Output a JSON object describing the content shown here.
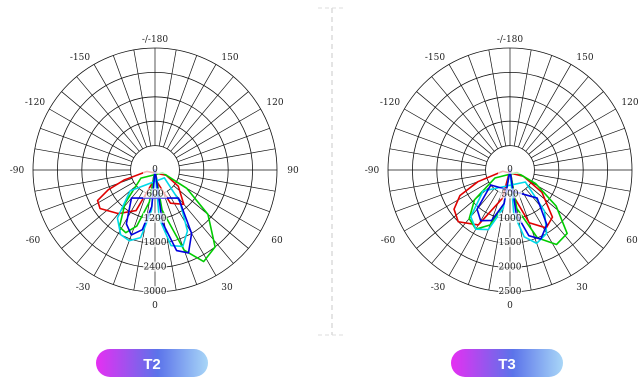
{
  "chart_data": [
    {
      "type": "polar",
      "badge": "T2",
      "angle_labels": [
        "-/-180",
        "-150",
        "150",
        "-120",
        "120",
        "-90",
        "90",
        "-60",
        "60",
        "-30",
        "30",
        "0"
      ],
      "radial_labels": [
        "0",
        "600",
        "1200",
        "1800",
        "2400",
        "3000"
      ],
      "rmax": 3000,
      "series": [
        {
          "color": "#e00000",
          "points": [
            [
              0,
              0
            ],
            [
              -10,
              300
            ],
            [
              -25,
              1100
            ],
            [
              -40,
              1400
            ],
            [
              -55,
              1650
            ],
            [
              -62,
              1600
            ],
            [
              -67,
              1250
            ],
            [
              -72,
              800
            ],
            [
              -80,
              200
            ],
            [
              10,
              300
            ],
            [
              25,
              900
            ],
            [
              40,
              1100
            ],
            [
              55,
              700
            ],
            [
              65,
              300
            ]
          ]
        },
        {
          "color": "#00cc00",
          "points": [
            [
              0,
              0
            ],
            [
              -10,
              800
            ],
            [
              -18,
              1450
            ],
            [
              -25,
              1700
            ],
            [
              -32,
              1650
            ],
            [
              -42,
              1100
            ],
            [
              -60,
              400
            ],
            [
              10,
              1000
            ],
            [
              20,
              2100
            ],
            [
              28,
              2550
            ],
            [
              38,
              2400
            ],
            [
              50,
              1700
            ],
            [
              60,
              900
            ],
            [
              70,
              200
            ]
          ]
        },
        {
          "color": "#00d8e8",
          "points": [
            [
              0,
              0
            ],
            [
              -5,
              1000
            ],
            [
              -12,
              1700
            ],
            [
              -20,
              1850
            ],
            [
              -28,
              1800
            ],
            [
              -38,
              1500
            ],
            [
              -50,
              800
            ],
            [
              5,
              1200
            ],
            [
              12,
              1900
            ],
            [
              20,
              2000
            ],
            [
              28,
              1700
            ],
            [
              38,
              1000
            ],
            [
              50,
              300
            ]
          ]
        },
        {
          "color": "#0000e0",
          "points": [
            [
              0,
              0
            ],
            [
              -5,
              900
            ],
            [
              -12,
              1500
            ],
            [
              -20,
              1700
            ],
            [
              -28,
              1500
            ],
            [
              -40,
              900
            ],
            [
              8,
              1300
            ],
            [
              15,
              2050
            ],
            [
              22,
              2200
            ],
            [
              30,
              1800
            ],
            [
              40,
              900
            ]
          ]
        }
      ]
    },
    {
      "type": "polar",
      "badge": "T3",
      "angle_labels": [
        "-/-180",
        "-150",
        "150",
        "-120",
        "120",
        "-90",
        "90",
        "-60",
        "60",
        "-30",
        "30",
        "0"
      ],
      "radial_labels": [
        "0",
        "500",
        "1000",
        "1500",
        "2000",
        "2500"
      ],
      "rmax": 2500,
      "series": [
        {
          "color": "#e00000",
          "points": [
            [
              0,
              0
            ],
            [
              -15,
              600
            ],
            [
              -30,
              1300
            ],
            [
              -45,
              1500
            ],
            [
              -55,
              1400
            ],
            [
              -63,
              1150
            ],
            [
              -70,
              700
            ],
            [
              -80,
              150
            ],
            [
              10,
              600
            ],
            [
              20,
              1150
            ],
            [
              32,
              1400
            ],
            [
              42,
              1300
            ],
            [
              55,
              800
            ],
            [
              65,
              300
            ]
          ]
        },
        {
          "color": "#00cc00",
          "points": [
            [
              0,
              0
            ],
            [
              -10,
              700
            ],
            [
              -20,
              1200
            ],
            [
              -30,
              1400
            ],
            [
              -40,
              1300
            ],
            [
              -50,
              950
            ],
            [
              -62,
              350
            ],
            [
              10,
              800
            ],
            [
              22,
              1500
            ],
            [
              32,
              1800
            ],
            [
              42,
              1750
            ],
            [
              52,
              1200
            ],
            [
              62,
              600
            ],
            [
              70,
              150
            ]
          ]
        },
        {
          "color": "#00d8e8",
          "points": [
            [
              0,
              0
            ],
            [
              -10,
              800
            ],
            [
              -20,
              1300
            ],
            [
              -30,
              1400
            ],
            [
              -40,
              1250
            ],
            [
              -52,
              700
            ],
            [
              5,
              900
            ],
            [
              12,
              1400
            ],
            [
              20,
              1600
            ],
            [
              30,
              1500
            ],
            [
              40,
              1100
            ],
            [
              52,
              400
            ]
          ]
        },
        {
          "color": "#0000e0",
          "points": [
            [
              0,
              0
            ],
            [
              -10,
              700
            ],
            [
              -20,
              1100
            ],
            [
              -30,
              1200
            ],
            [
              -40,
              1050
            ],
            [
              -52,
              500
            ],
            [
              8,
              900
            ],
            [
              16,
              1400
            ],
            [
              24,
              1550
            ],
            [
              34,
              1350
            ],
            [
              44,
              800
            ]
          ]
        }
      ]
    }
  ]
}
